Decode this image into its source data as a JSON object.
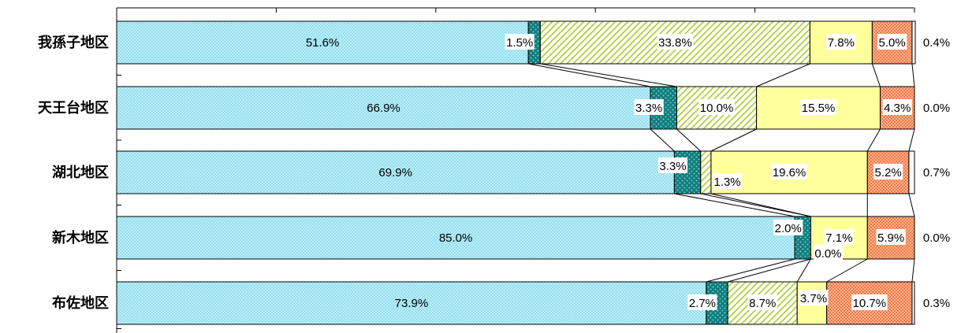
{
  "chart_data": {
    "type": "bar",
    "orientation": "horizontal",
    "stacked": true,
    "percent_stacked": true,
    "legend": "none",
    "grid": false,
    "xlim": [
      0,
      100
    ],
    "categories": [
      "我孫子地区",
      "天王台地区",
      "湖北地区",
      "新木地区",
      "布佐地区"
    ],
    "series": [
      {
        "values": [
          51.6,
          66.9,
          69.9,
          85.0,
          73.9
        ],
        "labels": [
          "51.6%",
          "66.9%",
          "69.9%",
          "85.0%",
          "73.9%"
        ]
      },
      {
        "values": [
          1.5,
          3.3,
          3.3,
          2.0,
          2.7
        ],
        "labels": [
          "1.5%",
          "3.3%",
          "3.3%",
          "2.0%",
          "2.7%"
        ]
      },
      {
        "values": [
          33.8,
          10.0,
          1.3,
          0.0,
          8.7
        ],
        "labels": [
          "33.8%",
          "10.0%",
          "1.3%",
          "0.0%",
          "8.7%"
        ]
      },
      {
        "values": [
          7.8,
          15.5,
          19.6,
          7.1,
          3.7
        ],
        "labels": [
          "7.8%",
          "15.5%",
          "19.6%",
          "7.1%",
          "3.7%"
        ]
      },
      {
        "values": [
          5.0,
          4.3,
          5.2,
          5.9,
          10.7
        ],
        "labels": [
          "5.0%",
          "4.3%",
          "5.2%",
          "5.9%",
          "10.7%"
        ]
      },
      {
        "values": [
          0.4,
          0.0,
          0.7,
          0.0,
          0.3
        ],
        "labels": [
          "0.4%",
          "0.0%",
          "0.7%",
          "0.0%",
          "0.3%"
        ]
      }
    ],
    "series_colors": [
      "#aee9f5",
      "#0f7f7f",
      "#e9f3a2",
      "#ffff99",
      "#ff9966",
      "#ffffff"
    ]
  }
}
